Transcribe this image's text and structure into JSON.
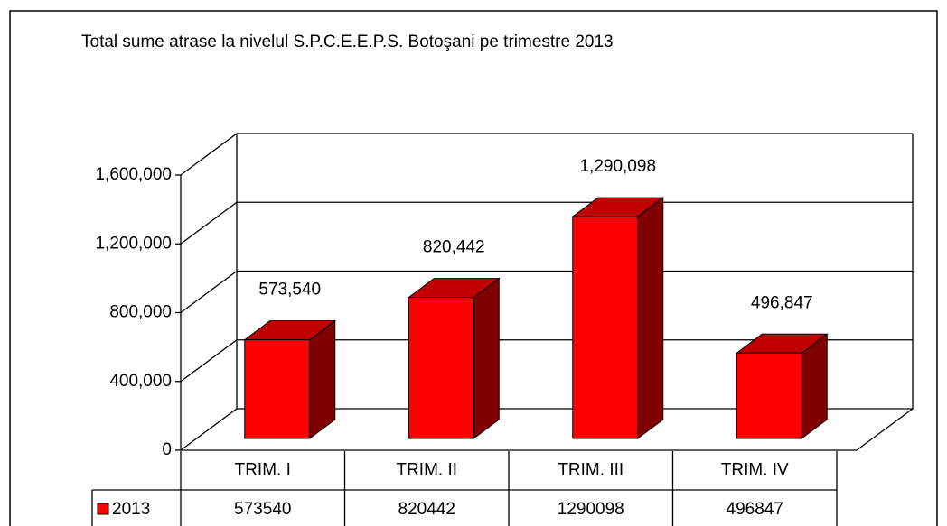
{
  "chart_data": {
    "type": "bar3d",
    "title": "Total sume atrase la nivelul S.P.C.E.E.P.S. Botoşani pe trimestre 2013",
    "categories": [
      "TRIM. I",
      "TRIM. II",
      "TRIM. III",
      "TRIM. IV"
    ],
    "series": [
      {
        "name": "2013",
        "color": "#ff0000",
        "values": [
          573540,
          820442,
          1290098,
          496847
        ],
        "value_labels": [
          "573,540",
          "820,442",
          "1,290,098",
          "496,847"
        ]
      }
    ],
    "ylim": [
      0,
      1600000
    ],
    "yticks": [
      0,
      {
        "value": 400000,
        "label": "400,000"
      },
      {
        "value": 800000,
        "label": "800,000"
      },
      {
        "value": 1200000,
        "label": "1,200,000"
      },
      {
        "value": 1600000,
        "label": "1,600,000"
      }
    ],
    "grid": true,
    "data_table": true
  }
}
